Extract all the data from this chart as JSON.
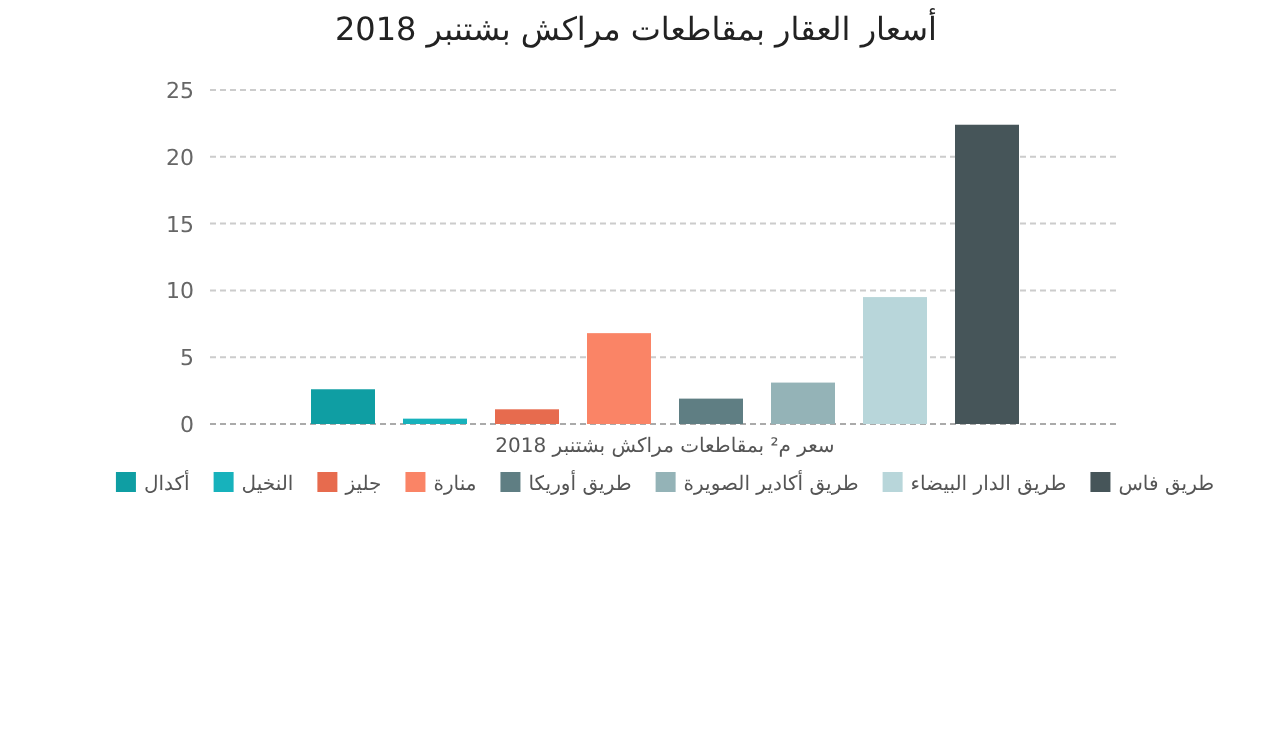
{
  "chart_data": {
    "type": "bar",
    "title": "أسعار العقار بمقاطعات مراكش بشتنبر 2018",
    "categories": [
      "سعر م² بمقاطعات مراكش بشتنبر 2018"
    ],
    "series": [
      {
        "name": "أكدال",
        "color": "#0f9ea3",
        "values": [
          2.6
        ]
      },
      {
        "name": "النخيل",
        "color": "#17b2bc",
        "values": [
          0.4
        ]
      },
      {
        "name": "جليز",
        "color": "#e76b4e",
        "values": [
          1.1
        ]
      },
      {
        "name": "منارة",
        "color": "#fa8466",
        "values": [
          6.8
        ]
      },
      {
        "name": "طريق أوريكا",
        "color": "#5f7e83",
        "values": [
          1.9
        ]
      },
      {
        "name": "طريق أكادير الصويرة",
        "color": "#94b3b7",
        "values": [
          3.1
        ]
      },
      {
        "name": "طريق الدار البيضاء",
        "color": "#b8d6da",
        "values": [
          9.5
        ]
      },
      {
        "name": "طريق فاس",
        "color": "#465559",
        "values": [
          22.4
        ]
      }
    ],
    "ylim": [
      0,
      25
    ],
    "yticks": [
      0,
      5,
      10,
      15,
      20,
      25
    ],
    "grid": "y",
    "legend": "bottom"
  }
}
